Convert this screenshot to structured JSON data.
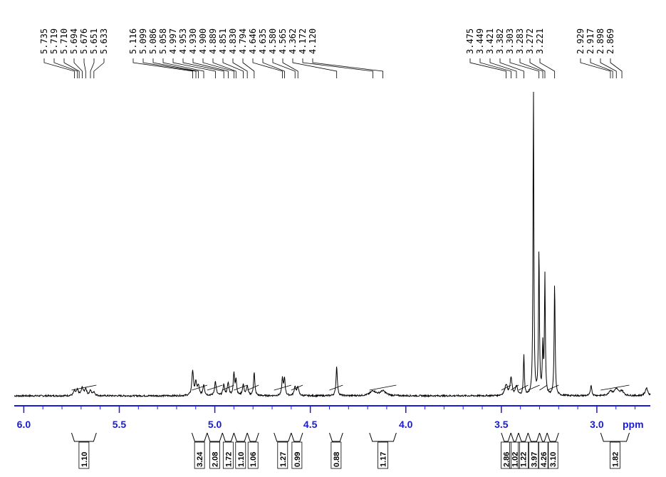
{
  "chart_data": {
    "type": "line",
    "title": "",
    "xlabel": "ppm",
    "ylabel": "",
    "x_axis_direction": "reversed",
    "xlim": [
      6.05,
      2.72
    ],
    "ylim": [
      0,
      100
    ],
    "x_ticks": [
      "6.0",
      "5.5",
      "5.0",
      "4.5",
      "4.0",
      "3.5",
      "3.0"
    ],
    "x_tick_values": [
      6.0,
      5.5,
      5.0,
      4.5,
      4.0,
      3.5,
      3.0
    ],
    "peak_labels": [
      "5.735",
      "5.719",
      "5.710",
      "5.694",
      "5.676",
      "5.651",
      "5.633",
      "5.116",
      "5.099",
      "5.086",
      "5.058",
      "4.997",
      "4.953",
      "4.930",
      "4.900",
      "4.889",
      "4.851",
      "4.830",
      "4.794",
      "4.646",
      "4.635",
      "4.580",
      "4.565",
      "4.362",
      "4.172",
      "4.120",
      "3.475",
      "3.449",
      "3.421",
      "3.382",
      "3.303",
      "3.283",
      "3.272",
      "3.221",
      "2.929",
      "2.917",
      "2.898",
      "2.869"
    ],
    "peak_positions": [
      5.735,
      5.719,
      5.71,
      5.694,
      5.676,
      5.651,
      5.633,
      5.116,
      5.099,
      5.086,
      5.058,
      4.997,
      4.953,
      4.93,
      4.9,
      4.889,
      4.851,
      4.83,
      4.794,
      4.646,
      4.635,
      4.58,
      4.565,
      4.362,
      4.172,
      4.12,
      3.475,
      3.449,
      3.421,
      3.382,
      3.303,
      3.283,
      3.272,
      3.221,
      2.929,
      2.917,
      2.898,
      2.869
    ],
    "integrals": [
      {
        "label": "1.10",
        "from": 5.75,
        "to": 5.62
      },
      {
        "label": "3.24",
        "from": 5.12,
        "to": 5.04
      },
      {
        "label": "2.08",
        "from": 5.04,
        "to": 4.96
      },
      {
        "label": "1.72",
        "from": 4.96,
        "to": 4.9
      },
      {
        "label": "1.10",
        "from": 4.9,
        "to": 4.83
      },
      {
        "label": "1.06",
        "from": 4.83,
        "to": 4.77
      },
      {
        "label": "1.27",
        "from": 4.69,
        "to": 4.6
      },
      {
        "label": "0.99",
        "from": 4.6,
        "to": 4.54
      },
      {
        "label": "0.88",
        "from": 4.4,
        "to": 4.33
      },
      {
        "label": "1.17",
        "from": 4.19,
        "to": 4.05
      },
      {
        "label": "2.86",
        "from": 3.5,
        "to": 3.45
      },
      {
        "label": "1.02",
        "from": 3.45,
        "to": 3.41
      },
      {
        "label": "1.22",
        "from": 3.41,
        "to": 3.36
      },
      {
        "label": "3.97",
        "from": 3.36,
        "to": 3.3
      },
      {
        "label": "4.26",
        "from": 3.3,
        "to": 3.26
      },
      {
        "label": "3.10",
        "from": 3.26,
        "to": 3.2
      },
      {
        "label": "1.82",
        "from": 2.98,
        "to": 2.83
      }
    ],
    "series": [
      {
        "color": "#000000",
        "peaks": [
          {
            "x": 5.735,
            "y": 1.5,
            "w": 0.006
          },
          {
            "x": 5.719,
            "y": 1.8,
            "w": 0.006
          },
          {
            "x": 5.694,
            "y": 2.5,
            "w": 0.006
          },
          {
            "x": 5.676,
            "y": 2.2,
            "w": 0.006
          },
          {
            "x": 5.651,
            "y": 1.6,
            "w": 0.006
          },
          {
            "x": 5.633,
            "y": 1.2,
            "w": 0.006
          },
          {
            "x": 5.116,
            "y": 8.0,
            "w": 0.005
          },
          {
            "x": 5.099,
            "y": 4.0,
            "w": 0.005
          },
          {
            "x": 5.086,
            "y": 3.0,
            "w": 0.005
          },
          {
            "x": 5.058,
            "y": 3.5,
            "w": 0.005
          },
          {
            "x": 4.997,
            "y": 4.5,
            "w": 0.005
          },
          {
            "x": 4.953,
            "y": 3.5,
            "w": 0.005
          },
          {
            "x": 4.93,
            "y": 4.0,
            "w": 0.005
          },
          {
            "x": 4.9,
            "y": 7.0,
            "w": 0.004
          },
          {
            "x": 4.889,
            "y": 5.0,
            "w": 0.004
          },
          {
            "x": 4.851,
            "y": 3.5,
            "w": 0.005
          },
          {
            "x": 4.83,
            "y": 3.0,
            "w": 0.005
          },
          {
            "x": 4.794,
            "y": 7.5,
            "w": 0.004
          },
          {
            "x": 4.646,
            "y": 5.5,
            "w": 0.004
          },
          {
            "x": 4.635,
            "y": 5.5,
            "w": 0.004
          },
          {
            "x": 4.58,
            "y": 3.0,
            "w": 0.005
          },
          {
            "x": 4.565,
            "y": 2.8,
            "w": 0.005
          },
          {
            "x": 4.362,
            "y": 9.5,
            "w": 0.004
          },
          {
            "x": 4.172,
            "y": 1.5,
            "w": 0.018
          },
          {
            "x": 4.12,
            "y": 1.5,
            "w": 0.018
          },
          {
            "x": 3.475,
            "y": 3.5,
            "w": 0.008
          },
          {
            "x": 3.449,
            "y": 5.5,
            "w": 0.006
          },
          {
            "x": 3.421,
            "y": 3.0,
            "w": 0.006
          },
          {
            "x": 3.382,
            "y": 13.0,
            "w": 0.003
          },
          {
            "x": 3.332,
            "y": 100,
            "w": 0.0025
          },
          {
            "x": 3.303,
            "y": 47,
            "w": 0.0028
          },
          {
            "x": 3.283,
            "y": 15,
            "w": 0.003
          },
          {
            "x": 3.272,
            "y": 38,
            "w": 0.0028
          },
          {
            "x": 3.221,
            "y": 36,
            "w": 0.003
          },
          {
            "x": 3.03,
            "y": 3.5,
            "w": 0.004
          },
          {
            "x": 2.929,
            "y": 1.5,
            "w": 0.01
          },
          {
            "x": 2.898,
            "y": 2.2,
            "w": 0.012
          },
          {
            "x": 2.869,
            "y": 1.5,
            "w": 0.01
          },
          {
            "x": 2.74,
            "y": 2.5,
            "w": 0.008
          }
        ]
      }
    ]
  }
}
